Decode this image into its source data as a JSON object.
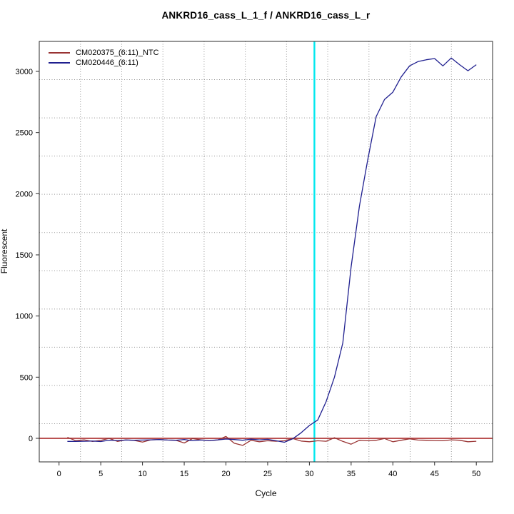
{
  "chart_data": {
    "type": "line",
    "title": "ANKRD16_cass_L_1_f / ANKRD16_cass_L_r",
    "xlabel": "Cycle",
    "ylabel": "Fluorescent",
    "x_ticks": [
      0,
      5,
      10,
      15,
      20,
      25,
      30,
      35,
      40,
      45,
      50
    ],
    "y_ticks": [
      0,
      500,
      1000,
      1500,
      2000,
      2500,
      3000
    ],
    "xlim": [
      -2.4,
      52.3
    ],
    "ylim": [
      -193,
      3245
    ],
    "grid": {
      "divisions": 11,
      "style": "dotted",
      "color": "#9a9a9a"
    },
    "threshold_line": {
      "y": 0,
      "color": "#b03a3a"
    },
    "ct_line": {
      "x": 30.6,
      "color": "#00e8ee"
    },
    "legend_position": "top-left",
    "x_start": 1,
    "series": [
      {
        "name": "CM020375_(6:11)_NTC",
        "color": "#993333",
        "values": [
          8,
          -19,
          -12,
          -25,
          -17,
          0,
          -25,
          -12,
          -17,
          -31,
          -12,
          -10,
          -14,
          -16,
          -38,
          -2,
          -12,
          -18,
          -14,
          15,
          -40,
          -58,
          -16,
          -28,
          -20,
          -24,
          -20,
          -2,
          -22,
          -28,
          -20,
          -24,
          5,
          -25,
          -48,
          -16,
          -20,
          -16,
          -2,
          -28,
          -16,
          -4,
          -14,
          -16,
          -18,
          -20,
          -12,
          -16,
          -28,
          -24
        ]
      },
      {
        "name": "CM020446_(6:11)",
        "color": "#1f1f8f",
        "values": [
          -25,
          -25,
          -24,
          -22,
          -26,
          -15,
          -18,
          -14,
          -16,
          -14,
          -12,
          -10,
          -14,
          -16,
          -10,
          -20,
          -14,
          -18,
          -13,
          -6,
          -10,
          -16,
          -7,
          -12,
          -8,
          -20,
          -32,
          -4,
          45,
          105,
          150,
          300,
          500,
          780,
          1400,
          1900,
          2280,
          2630,
          2770,
          2830,
          2955,
          3045,
          3080,
          3095,
          3105,
          3045,
          3110,
          3055,
          3005,
          3055
        ]
      }
    ]
  }
}
